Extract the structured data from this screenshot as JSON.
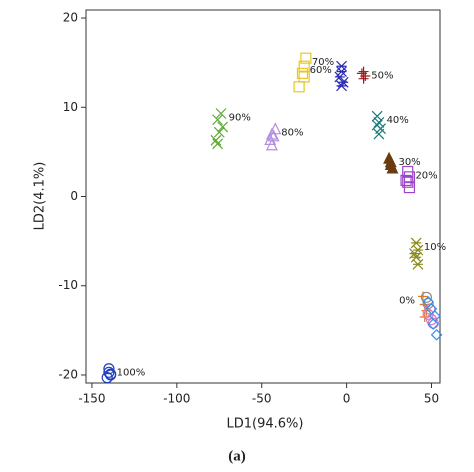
{
  "chart_data": {
    "type": "scatter",
    "caption": "(a)",
    "x_label": "LD1(94.6%)",
    "y_label": "LD2(4.1%)",
    "xlim": [
      -153.5,
      55
    ],
    "ylim": [
      -20.9,
      20.9
    ],
    "xticks": [
      -150,
      -100,
      -50,
      0,
      50
    ],
    "yticks": [
      -20,
      -10,
      0,
      10,
      20
    ],
    "series": [
      {
        "name": "100%",
        "color": "#1f3fbf",
        "marker": "circle",
        "x": [
          -140,
          -140,
          -139,
          -141,
          -139
        ],
        "values": [
          -19.3,
          -19.7,
          -20.0,
          -20.3,
          -19.9
        ]
      },
      {
        "name": "90%",
        "color": "#5aa832",
        "marker": "x",
        "x": [
          -74,
          -76,
          -75,
          -77,
          -73,
          -76
        ],
        "values": [
          9.3,
          8.6,
          7.2,
          6.3,
          7.8,
          5.9
        ]
      },
      {
        "name": "80%",
        "color": "#b48ee0",
        "marker": "triangle",
        "x": [
          -42,
          -44,
          -45,
          -43,
          -44
        ],
        "values": [
          7.6,
          7.0,
          6.4,
          6.8,
          5.8
        ]
      },
      {
        "name": "70%",
        "color": "#e8c81e",
        "marker": "square",
        "x": [
          -24,
          -25,
          -26,
          -28,
          -25
        ],
        "values": [
          15.5,
          14.6,
          13.8,
          12.3,
          13.4
        ]
      },
      {
        "name": "60%",
        "color": "#2b2bb5",
        "marker": "asterisk",
        "x": [
          -3,
          -3,
          -4,
          -2,
          -3
        ],
        "values": [
          14.6,
          14.0,
          13.4,
          12.8,
          12.4
        ]
      },
      {
        "name": "50%",
        "color": "#a31b1b",
        "marker": "plus",
        "x": [
          10,
          11,
          10,
          9
        ],
        "values": [
          14.0,
          13.5,
          13.2,
          13.8
        ]
      },
      {
        "name": "40%",
        "color": "#1a7a7a",
        "marker": "x",
        "x": [
          18,
          19,
          20,
          19,
          18
        ],
        "values": [
          9.0,
          8.3,
          7.6,
          7.0,
          8.0
        ]
      },
      {
        "name": "30%",
        "color": "#6b3a0e",
        "marker": "triangle-filled",
        "x": [
          25,
          26,
          27,
          26
        ],
        "values": [
          4.3,
          3.6,
          3.2,
          3.9
        ]
      },
      {
        "name": "20%",
        "color": "#9b45c9",
        "marker": "square",
        "x": [
          36,
          37,
          36,
          37,
          35
        ],
        "values": [
          2.8,
          2.2,
          1.6,
          1.0,
          1.8
        ]
      },
      {
        "name": "10%",
        "color": "#8a8a1a",
        "marker": "asterisk",
        "x": [
          41,
          42,
          41,
          42,
          40
        ],
        "values": [
          -5.2,
          -6.0,
          -6.8,
          -7.6,
          -6.4
        ]
      },
      {
        "name": "0%",
        "color": "#e07b22",
        "marker": "plus",
        "x": [
          45,
          46,
          47,
          46
        ],
        "values": [
          -11.2,
          -12.1,
          -12.8,
          -13.5
        ]
      },
      {
        "color": "#8a8a8a",
        "marker": "circle",
        "x": [
          47,
          48
        ],
        "values": [
          -11.3,
          -12.0
        ]
      },
      {
        "color": "#d679c8",
        "marker": "circle",
        "x": [
          48,
          50,
          49,
          51
        ],
        "values": [
          -13.2,
          -13.8,
          -12.6,
          -14.2
        ]
      },
      {
        "color": "#3a8ee8",
        "marker": "diamond",
        "x": [
          48,
          50,
          52,
          53,
          51
        ],
        "values": [
          -11.8,
          -12.6,
          -13.4,
          -15.5,
          -14.3
        ]
      }
    ]
  }
}
